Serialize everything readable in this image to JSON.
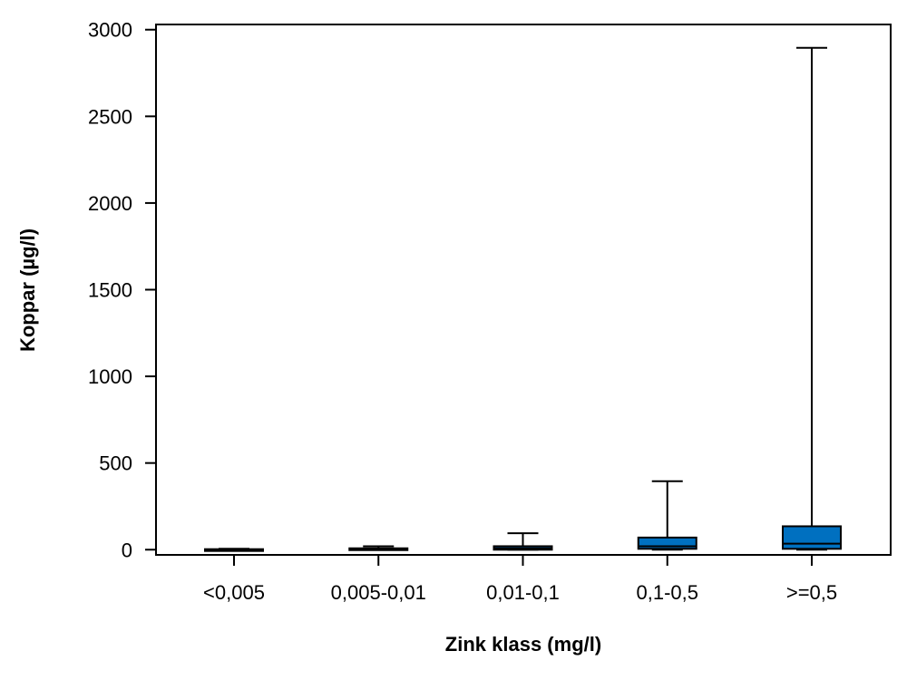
{
  "chart_data": {
    "type": "boxplot",
    "title": "",
    "xlabel": "Zink klass (mg/l)",
    "ylabel": "Koppar (µg/l)",
    "ylim": [
      -30,
      3030
    ],
    "yticks": [
      0,
      500,
      1000,
      1500,
      2000,
      2500,
      3000
    ],
    "categories": [
      "<0,005",
      "0,005-0,01",
      "0,01-0,1",
      "0,1-0,5",
      ">=0,5"
    ],
    "series": [
      {
        "category": "<0,005",
        "min": 0,
        "q1": 0,
        "median": 0,
        "q3": 3,
        "max": 5
      },
      {
        "category": "0,005-0,01",
        "min": 0,
        "q1": 0,
        "median": 3,
        "q3": 8,
        "max": 20
      },
      {
        "category": "0,01-0,1",
        "min": 0,
        "q1": 0,
        "median": 8,
        "q3": 20,
        "max": 95
      },
      {
        "category": "0,1-0,5",
        "min": 0,
        "q1": 5,
        "median": 20,
        "q3": 70,
        "max": 395
      },
      {
        "category": ">=0,5",
        "min": 0,
        "q1": 5,
        "median": 35,
        "q3": 135,
        "max": 2895
      }
    ],
    "box_color": "#0070C0",
    "grid": false,
    "legend": "none"
  }
}
